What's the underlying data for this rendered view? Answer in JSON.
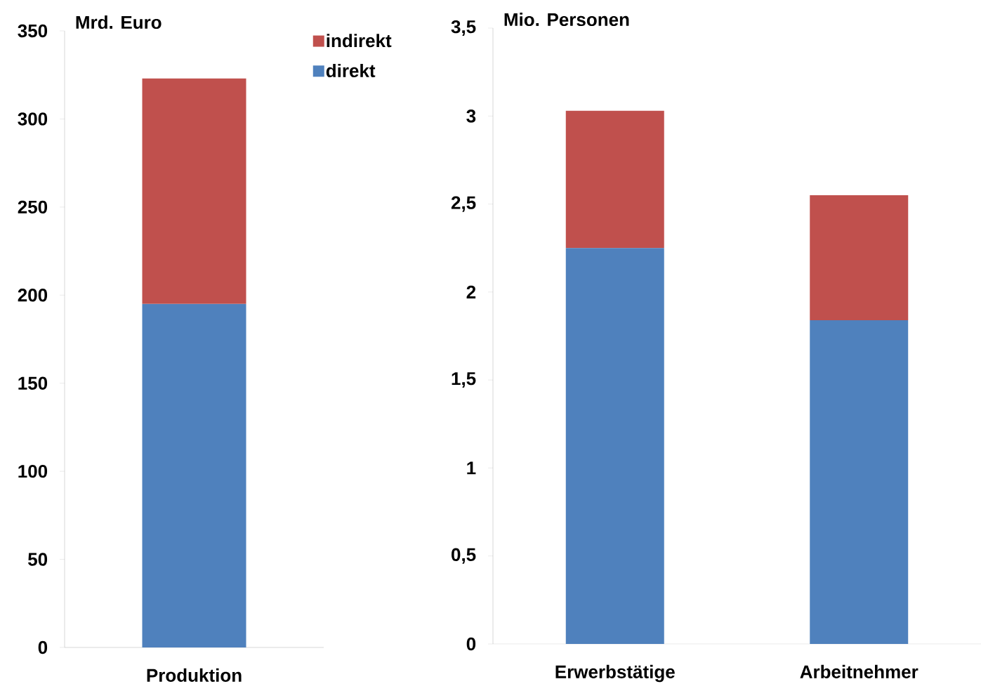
{
  "chart_data": [
    {
      "type": "bar",
      "stacked": true,
      "ylabel": "Mrd. Euro",
      "categories": [
        "Produktion"
      ],
      "legend": "top right",
      "series": [
        {
          "name": "direkt",
          "color": "#4f81bd",
          "values": [
            195
          ]
        },
        {
          "name": "indirekt",
          "color": "#c0504d",
          "values": [
            128
          ]
        }
      ],
      "ylim": [
        0,
        350
      ],
      "yticks": [
        0,
        50,
        100,
        150,
        200,
        250,
        300,
        350
      ]
    },
    {
      "type": "bar",
      "stacked": true,
      "ylabel": "Mio. Personen",
      "categories": [
        "Erwerbstätige",
        "Arbeitnehmer"
      ],
      "series": [
        {
          "color": "#4f81bd",
          "values": [
            2.25,
            1.84
          ]
        },
        {
          "color": "#c0504d",
          "values": [
            0.78,
            0.71
          ]
        }
      ],
      "ylim": [
        0,
        3.5
      ],
      "yticks": [
        0,
        {
          "value": 0.5,
          "label": "0,5"
        },
        1,
        {
          "value": 1.5,
          "label": "1,5"
        },
        2,
        {
          "value": 2.5,
          "label": "2,5"
        },
        3,
        {
          "value": 3.5,
          "label": "3,5"
        }
      ]
    }
  ]
}
